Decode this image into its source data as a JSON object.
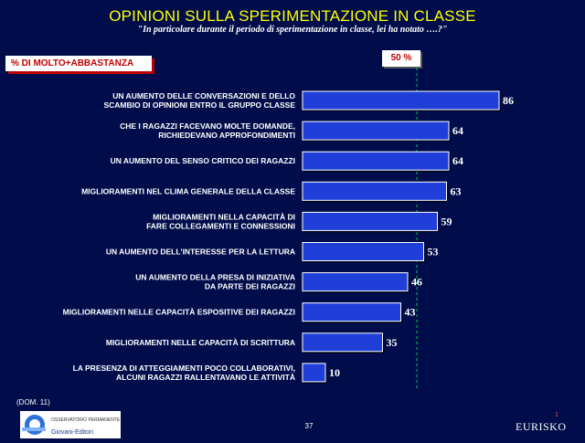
{
  "header": {
    "title": "OPINIONI SULLA SPERIMENTAZIONE IN CLASSE",
    "subtitle": "\"In particolare durante il periodo di sperimentazione in classe, lei ha notato ….?\""
  },
  "metric_label": "% DI MOLTO+ABBASTANZA",
  "reference_label": "50 %",
  "footer": {
    "note": "(DOM. 11)",
    "page_number": "37",
    "brand": "EURISKO",
    "corner_mark": "1",
    "logo_text_top": "OSSERVATORIO PERMANENTE",
    "logo_text_bottom": "Giovani-Editori"
  },
  "colors": {
    "background": "#000d4a",
    "bar_fill": "#1f3fd8",
    "bar_border": "#ffffff",
    "title": "#ffff00",
    "reference_line": "#00c853",
    "accent_red": "#c00000"
  },
  "chart_data": {
    "type": "bar",
    "orientation": "horizontal",
    "reference_value": 50,
    "categories": [
      [
        "UN AUMENTO DELLE CONVERSAZIONI E DELLO",
        "SCAMBIO DI OPINIONI ENTRO IL GRUPPO CLASSE"
      ],
      [
        "CHE I RAGAZZI FACEVANO MOLTE DOMANDE,",
        "RICHIEDEVANO APPROFONDIMENTI"
      ],
      [
        "UN AUMENTO DEL SENSO CRITICO DEI RAGAZZI"
      ],
      [
        "MIGLIORAMENTI NEL CLIMA GENERALE DELLA CLASSE"
      ],
      [
        "MIGLIORAMENTI NELLA CAPACITÀ DI",
        "FARE COLLEGAMENTI E CONNESSIONI"
      ],
      [
        "UN AUMENTO DELL'INTERESSE PER LA LETTURA"
      ],
      [
        "UN AUMENTO DELLA PRESA DI INIZIATIVA",
        "DA PARTE DEI RAGAZZI"
      ],
      [
        "MIGLIORAMENTI NELLE CAPACITÀ ESPOSITIVE DEI RAGAZZI"
      ],
      [
        "MIGLIORAMENTI NELLE CAPACITÀ DI SCRITTURA"
      ],
      [
        "LA PRESENZA DI ATTEGGIAMENTI POCO COLLABORATIVI,",
        "ALCUNI RAGAZZI RALLENTAVANO LE ATTIVITÀ"
      ]
    ],
    "values": [
      86,
      64,
      64,
      63,
      59,
      53,
      46,
      43,
      35,
      10
    ],
    "value_labels": [
      "86",
      "64",
      "64",
      "63",
      "59",
      "53",
      "46",
      "43",
      "35",
      "10"
    ],
    "xlim": [
      0,
      100
    ],
    "grid": false,
    "legend": "none"
  }
}
